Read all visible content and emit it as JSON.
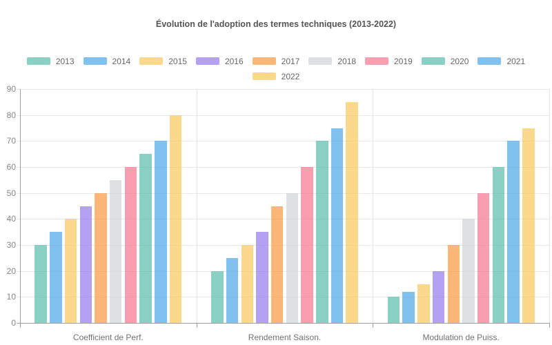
{
  "chart_data": {
    "type": "bar",
    "title": "Évolution de l'adoption des termes techniques (2013-2022)",
    "categories": [
      "Coefficient de Perf.",
      "Rendement Saison.",
      "Modulation de Puiss."
    ],
    "series": [
      {
        "name": "2013",
        "color": "#58BCAC",
        "values": [
          30,
          20,
          10
        ]
      },
      {
        "name": "2014",
        "color": "#4BA6E8",
        "values": [
          35,
          25,
          12
        ]
      },
      {
        "name": "2015",
        "color": "#F9C95B",
        "values": [
          40,
          30,
          15
        ]
      },
      {
        "name": "2016",
        "color": "#9479EC",
        "values": [
          45,
          35,
          20
        ]
      },
      {
        "name": "2017",
        "color": "#F8993E",
        "values": [
          50,
          45,
          30
        ]
      },
      {
        "name": "2018",
        "color": "#D1D3D6",
        "values": [
          55,
          50,
          40
        ]
      },
      {
        "name": "2019",
        "color": "#F67390",
        "values": [
          60,
          60,
          50
        ]
      },
      {
        "name": "2020",
        "color": "#58BCAC",
        "values": [
          65,
          70,
          60
        ]
      },
      {
        "name": "2021",
        "color": "#4BA6E8",
        "values": [
          70,
          75,
          70
        ]
      },
      {
        "name": "2022",
        "color": "#F9C95B",
        "values": [
          80,
          85,
          75
        ]
      }
    ],
    "bar_opacity": 0.7,
    "ylim": [
      0,
      90
    ],
    "ytick_step": 10,
    "grid": true,
    "legend_position": "top",
    "colors": {
      "axis": "#9E9E9E",
      "gridline": "#E8E8E8",
      "separator": "#E5E5E5",
      "title_text": "#555555",
      "legend_text": "#666666",
      "ytick_text": "#848484",
      "category_text": "#717171",
      "background": "#FFFFFF"
    }
  }
}
